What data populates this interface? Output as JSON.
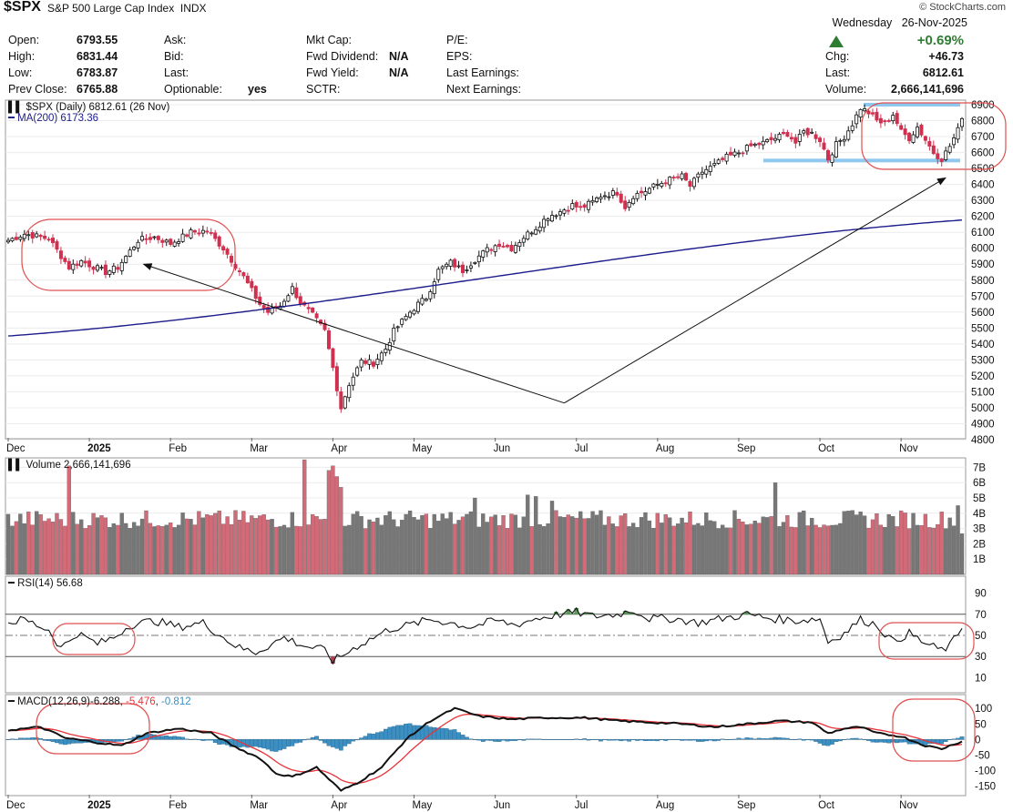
{
  "header": {
    "symbol": "$SPX",
    "description": "S&P 500 Large Cap Index",
    "exchange": "INDX",
    "credit": "© StockCharts.com",
    "day": "Wednesday",
    "date": "26-Nov-2025",
    "change_pct": "+0.69%",
    "rows": [
      {
        "l1": "Open:",
        "v1": "6793.55",
        "l2": "Ask:",
        "v2": "",
        "l3": "Mkt Cap:",
        "v3": "",
        "l4": "P/E:",
        "v4": "",
        "l5": "Chg:",
        "v5": "+46.73"
      },
      {
        "l1": "High:",
        "v1": "6831.44",
        "l2": "Bid:",
        "v2": "",
        "l3": "Fwd Dividend:",
        "v3": "N/A",
        "l4": "EPS:",
        "v4": "",
        "l5": "Last:",
        "v5": "6812.61"
      },
      {
        "l1": "Low:",
        "v1": "6783.87",
        "l2": "Last:",
        "v2": "",
        "l3": "Fwd Yield:",
        "v3": "N/A",
        "l4": "Last Earnings:",
        "v4": "",
        "l5": "Volume:",
        "v5": "2,666,141,696"
      },
      {
        "l1": "Prev Close:",
        "v1": "6765.88",
        "l2": "Optionable:",
        "v2": "yes",
        "l3": "SCTR:",
        "v3": "",
        "l4": "Next Earnings:",
        "v4": ""
      }
    ]
  },
  "colors": {
    "up": "#111111",
    "down": "#d0304f",
    "ma": "#1c1c8c",
    "vol_up": "#777777",
    "vol_down": "#d26a78",
    "rsi": "#111111",
    "macd": "#111111",
    "signal": "#e8333a",
    "hist": "#3b8fc2",
    "circle": "#e05050",
    "band": "#8ec8ee",
    "arrow": "#111111"
  },
  "chart_data": [
    {
      "type": "candlestick",
      "title": "$SPX (Daily) 6812.61 (26 Nov)",
      "ma_label": "MA(200) 6173.36",
      "ylim": [
        4800,
        6900
      ],
      "yticks": [
        6900,
        6800,
        6700,
        6600,
        6500,
        6400,
        6300,
        6200,
        6100,
        6000,
        5900,
        5800,
        5700,
        5600,
        5500,
        5400,
        5300,
        5200,
        5100,
        5000,
        4900,
        4800
      ],
      "months": [
        "Dec",
        "2025",
        "Feb",
        "Mar",
        "Apr",
        "May",
        "Jun",
        "Jul",
        "Aug",
        "Sep",
        "Oct",
        "Nov"
      ],
      "month_day_index": [
        0,
        20,
        40,
        60,
        80,
        100,
        120,
        140,
        160,
        180,
        200,
        220
      ],
      "close_anchors": [
        [
          0,
          6050
        ],
        [
          4,
          6090
        ],
        [
          10,
          6060
        ],
        [
          15,
          5880
        ],
        [
          18,
          5920
        ],
        [
          24,
          5850
        ],
        [
          27,
          5880
        ],
        [
          32,
          6050
        ],
        [
          36,
          6070
        ],
        [
          40,
          6030
        ],
        [
          45,
          6100
        ],
        [
          49,
          6110
        ],
        [
          53,
          6000
        ],
        [
          58,
          5820
        ],
        [
          62,
          5650
        ],
        [
          64,
          5600
        ],
        [
          67,
          5640
        ],
        [
          70,
          5750
        ],
        [
          72,
          5660
        ],
        [
          75,
          5580
        ],
        [
          78,
          5480
        ],
        [
          80,
          5250
        ],
        [
          82,
          5000
        ],
        [
          84,
          5150
        ],
        [
          87,
          5290
        ],
        [
          90,
          5280
        ],
        [
          93,
          5370
        ],
        [
          95,
          5480
        ],
        [
          97,
          5540
        ],
        [
          99,
          5600
        ],
        [
          101,
          5650
        ],
        [
          103,
          5690
        ],
        [
          106,
          5860
        ],
        [
          109,
          5910
        ],
        [
          112,
          5860
        ],
        [
          115,
          5930
        ],
        [
          118,
          5990
        ],
        [
          121,
          6030
        ],
        [
          124,
          6000
        ],
        [
          127,
          6070
        ],
        [
          130,
          6130
        ],
        [
          133,
          6200
        ],
        [
          136,
          6230
        ],
        [
          139,
          6270
        ],
        [
          141,
          6250
        ],
        [
          144,
          6290
        ],
        [
          146,
          6330
        ],
        [
          150,
          6350
        ],
        [
          152,
          6260
        ],
        [
          154,
          6330
        ],
        [
          157,
          6360
        ],
        [
          160,
          6400
        ],
        [
          163,
          6430
        ],
        [
          166,
          6450
        ],
        [
          168,
          6390
        ],
        [
          171,
          6480
        ],
        [
          174,
          6520
        ],
        [
          177,
          6570
        ],
        [
          180,
          6600
        ],
        [
          183,
          6640
        ],
        [
          186,
          6660
        ],
        [
          189,
          6690
        ],
        [
          192,
          6720
        ],
        [
          194,
          6660
        ],
        [
          196,
          6730
        ],
        [
          198,
          6720
        ],
        [
          200,
          6680
        ],
        [
          202,
          6560
        ],
        [
          204,
          6650
        ],
        [
          206,
          6700
        ],
        [
          208,
          6780
        ],
        [
          210,
          6880
        ],
        [
          212,
          6850
        ],
        [
          214,
          6800
        ],
        [
          216,
          6780
        ],
        [
          218,
          6840
        ],
        [
          220,
          6730
        ],
        [
          222,
          6690
        ],
        [
          224,
          6760
        ],
        [
          226,
          6680
        ],
        [
          228,
          6600
        ],
        [
          230,
          6560
        ],
        [
          232,
          6640
        ],
        [
          234,
          6740
        ],
        [
          235,
          6812
        ]
      ],
      "ma200": {
        "start": 5450,
        "end": 6173.36
      },
      "annotations": {
        "horizontal_levels": [
          6900,
          6550
        ],
        "arrow_points": [
          [
            32,
            5900
          ],
          [
            137,
            5030
          ],
          [
            235,
            6510
          ]
        ]
      }
    },
    {
      "type": "bar",
      "title": "Volume 2,666,141,696",
      "ylim": [
        0,
        7500000000
      ],
      "yticks": [
        "7B",
        "6B",
        "5B",
        "4B",
        "3B",
        "2B",
        "1B"
      ],
      "ytick_values": [
        7,
        6,
        5,
        4,
        3,
        2,
        1
      ],
      "base_level": 3.7,
      "spikes": [
        [
          15,
          7.1
        ],
        [
          73,
          7.5
        ],
        [
          79,
          6.8
        ],
        [
          80,
          7.1
        ],
        [
          81,
          6.4
        ],
        [
          82,
          5.7
        ],
        [
          115,
          5.0
        ],
        [
          128,
          5.2
        ],
        [
          130,
          5.1
        ],
        [
          134,
          4.8
        ],
        [
          189,
          6.0
        ],
        [
          234,
          4.5
        ],
        [
          235,
          2.67
        ]
      ]
    },
    {
      "type": "line",
      "title": "RSI(14) 56.68",
      "ylim": [
        0,
        100
      ],
      "yticks": [
        90,
        70,
        50,
        30,
        10
      ],
      "ref_lines": [
        70,
        30,
        50
      ],
      "anchors": [
        [
          0,
          62
        ],
        [
          4,
          65
        ],
        [
          10,
          55
        ],
        [
          13,
          38
        ],
        [
          17,
          52
        ],
        [
          22,
          42
        ],
        [
          26,
          48
        ],
        [
          30,
          60
        ],
        [
          36,
          64
        ],
        [
          42,
          58
        ],
        [
          48,
          62
        ],
        [
          53,
          48
        ],
        [
          57,
          38
        ],
        [
          61,
          34
        ],
        [
          64,
          40
        ],
        [
          68,
          48
        ],
        [
          73,
          40
        ],
        [
          78,
          36
        ],
        [
          80,
          26
        ],
        [
          82,
          30
        ],
        [
          86,
          40
        ],
        [
          90,
          48
        ],
        [
          94,
          56
        ],
        [
          99,
          60
        ],
        [
          104,
          65
        ],
        [
          109,
          62
        ],
        [
          114,
          58
        ],
        [
          120,
          64
        ],
        [
          125,
          60
        ],
        [
          130,
          66
        ],
        [
          136,
          70
        ],
        [
          140,
          72
        ],
        [
          144,
          68
        ],
        [
          150,
          70
        ],
        [
          154,
          74
        ],
        [
          158,
          66
        ],
        [
          164,
          66
        ],
        [
          170,
          62
        ],
        [
          176,
          66
        ],
        [
          182,
          70
        ],
        [
          188,
          66
        ],
        [
          194,
          64
        ],
        [
          200,
          66
        ],
        [
          202,
          44
        ],
        [
          206,
          52
        ],
        [
          210,
          65
        ],
        [
          214,
          60
        ],
        [
          218,
          44
        ],
        [
          222,
          52
        ],
        [
          226,
          42
        ],
        [
          230,
          36
        ],
        [
          232,
          40
        ],
        [
          235,
          56.68
        ]
      ]
    },
    {
      "type": "line",
      "title": "MACD(12,26,9)",
      "macd_value": "-6.288",
      "signal_value": "-5.476",
      "hist_value": "-0.812",
      "ylim": [
        -175,
        130
      ],
      "yticks": [
        100,
        50,
        0,
        -50,
        -100,
        -150
      ],
      "macd_anchors": [
        [
          0,
          30
        ],
        [
          8,
          40
        ],
        [
          14,
          5
        ],
        [
          22,
          -10
        ],
        [
          28,
          -20
        ],
        [
          34,
          20
        ],
        [
          42,
          35
        ],
        [
          50,
          20
        ],
        [
          56,
          -25
        ],
        [
          62,
          -60
        ],
        [
          66,
          -110
        ],
        [
          70,
          -120
        ],
        [
          76,
          -90
        ],
        [
          82,
          -165
        ],
        [
          86,
          -140
        ],
        [
          92,
          -90
        ],
        [
          98,
          0
        ],
        [
          104,
          60
        ],
        [
          110,
          100
        ],
        [
          116,
          75
        ],
        [
          124,
          65
        ],
        [
          132,
          70
        ],
        [
          142,
          70
        ],
        [
          150,
          60
        ],
        [
          158,
          55
        ],
        [
          166,
          50
        ],
        [
          174,
          40
        ],
        [
          182,
          50
        ],
        [
          190,
          60
        ],
        [
          198,
          55
        ],
        [
          202,
          20
        ],
        [
          206,
          35
        ],
        [
          210,
          40
        ],
        [
          214,
          20
        ],
        [
          220,
          10
        ],
        [
          226,
          -20
        ],
        [
          230,
          -30
        ],
        [
          233,
          -15
        ],
        [
          235,
          -6.288
        ]
      ]
    }
  ]
}
